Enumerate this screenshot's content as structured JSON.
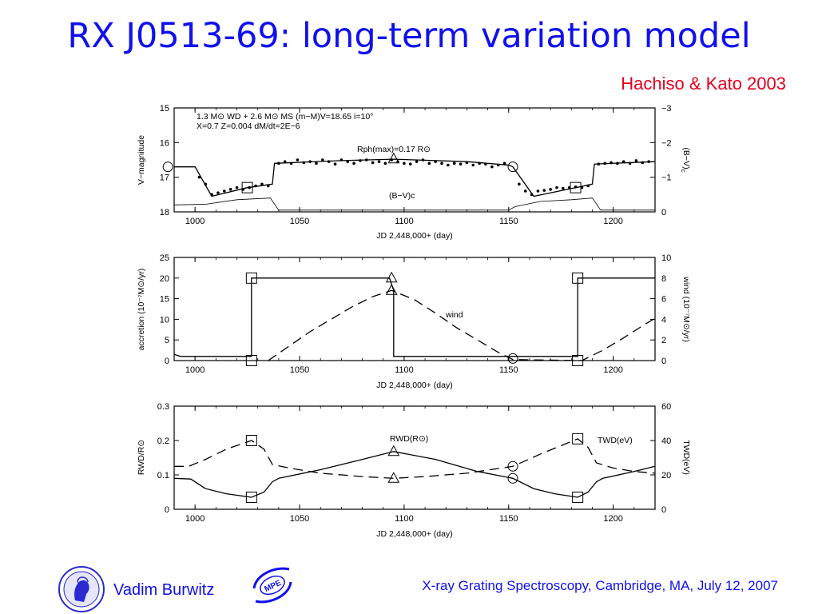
{
  "slide": {
    "title": "RX J0513-69: long-term variation model",
    "citation": "Hachiso & Kato 2003",
    "footer_author": "Vadim Burwitz",
    "footer_event": "X-ray Grating Spectroscopy, Cambridge, MA, July 12, 2007",
    "logos": [
      "max-planck-seal",
      "mpe-logo"
    ]
  },
  "colors": {
    "title": "#1010ee",
    "citation": "#e4001c",
    "footer": "#1010ee",
    "plot": "#000000"
  },
  "chart_data": [
    {
      "type": "line",
      "xlabel": "JD 2,448,000+ (day)",
      "ylabel": "V−magnitude",
      "ylabel_right": "(B−V)",
      "ylabel_right_sub": "c",
      "xlim": [
        990,
        1220
      ],
      "ylim": [
        18,
        15
      ],
      "ylim_right": [
        0,
        -3
      ],
      "xticks": [
        1000,
        1050,
        1100,
        1150,
        1200
      ],
      "yticks": [
        15,
        16,
        17,
        18
      ],
      "yticks_right": [
        -3,
        -2,
        -1,
        0
      ],
      "annotations": {
        "params_line1": "1.3 M⊙ WD + 2.6 M⊙ MS  (m−M)V=18.65  i=10°",
        "params_line2": "X=0.7  Z=0.004  dM/dt=2E−6",
        "rph_label": "Rph(max)=0.17 R⊙",
        "bv_label": "(B−V)c"
      },
      "series": [
        {
          "style": "solid",
          "x": [
            990,
            1000,
            1008,
            1025,
            1037,
            1038,
            1070,
            1095,
            1130,
            1150,
            1152,
            1162,
            1182,
            1190,
            1191,
            1220
          ],
          "y": [
            16.7,
            16.7,
            17.55,
            17.3,
            17.2,
            16.6,
            16.52,
            16.48,
            16.55,
            16.65,
            16.7,
            17.55,
            17.3,
            17.2,
            16.62,
            16.55
          ]
        },
        {
          "name": "(B−V)c",
          "style": "solid-thin",
          "x": [
            990,
            1005,
            1020,
            1036,
            1040,
            1150,
            1153,
            1165,
            1180,
            1190,
            1194,
            1220
          ],
          "y_right": [
            -0.2,
            -0.22,
            -0.35,
            -0.4,
            -0.05,
            -0.05,
            -0.15,
            -0.3,
            -0.35,
            -0.4,
            -0.05,
            -0.05
          ]
        },
        {
          "style": "dots",
          "x": [
            1002,
            1005,
            1008,
            1011,
            1014,
            1017,
            1020,
            1023,
            1026,
            1029,
            1032,
            1035,
            1040,
            1043,
            1046,
            1049,
            1052,
            1055,
            1058,
            1061,
            1064,
            1067,
            1070,
            1073,
            1076,
            1079,
            1082,
            1085,
            1088,
            1091,
            1094,
            1097,
            1100,
            1103,
            1106,
            1109,
            1112,
            1115,
            1118,
            1121,
            1124,
            1127,
            1130,
            1133,
            1136,
            1139,
            1142,
            1145,
            1148,
            1155,
            1158,
            1161,
            1164,
            1167,
            1170,
            1173,
            1176,
            1179,
            1182,
            1185,
            1188,
            1193,
            1196,
            1199,
            1202,
            1205,
            1208,
            1211,
            1214,
            1217
          ],
          "y": [
            17.0,
            17.2,
            17.5,
            17.45,
            17.4,
            17.35,
            17.3,
            17.35,
            17.3,
            17.25,
            17.2,
            17.25,
            16.6,
            16.55,
            16.6,
            16.5,
            16.58,
            16.55,
            16.6,
            16.5,
            16.55,
            16.62,
            16.5,
            16.55,
            16.6,
            16.52,
            16.5,
            16.58,
            16.55,
            16.6,
            16.5,
            16.55,
            16.6,
            16.62,
            16.55,
            16.5,
            16.6,
            16.55,
            16.6,
            16.65,
            16.6,
            16.62,
            16.58,
            16.65,
            16.6,
            16.62,
            16.7,
            16.65,
            16.6,
            17.2,
            17.4,
            17.5,
            17.4,
            17.38,
            17.35,
            17.3,
            17.32,
            17.3,
            17.28,
            17.3,
            17.25,
            16.62,
            16.6,
            16.58,
            16.6,
            16.55,
            16.6,
            16.52,
            16.58,
            16.55
          ]
        }
      ],
      "markers": [
        {
          "shape": "circle",
          "x": 987,
          "y": 16.7
        },
        {
          "shape": "square",
          "x": 1025,
          "y": 17.3
        },
        {
          "shape": "triangle",
          "x": 1095,
          "y": 16.47
        },
        {
          "shape": "circle",
          "x": 1152,
          "y": 16.7
        },
        {
          "shape": "square",
          "x": 1182,
          "y": 17.3
        }
      ]
    },
    {
      "type": "line",
      "xlabel": "JD 2,448,000+ (day)",
      "ylabel": "accretion (10⁻⁷M⊙/yr)",
      "ylabel_right": "wind (10⁻⁷M⊙/yr)",
      "xlim": [
        990,
        1220
      ],
      "ylim": [
        0,
        25
      ],
      "ylim_right": [
        0,
        10
      ],
      "xticks": [
        1000,
        1050,
        1100,
        1150,
        1200
      ],
      "yticks": [
        0,
        5,
        10,
        15,
        20,
        25
      ],
      "yticks_right": [
        0,
        2,
        4,
        6,
        8,
        10
      ],
      "annotations": {
        "wind_label": "wind"
      },
      "series": [
        {
          "name": "accretion",
          "style": "solid",
          "x": [
            990,
            993,
            1027,
            1027,
            1093,
            1095,
            1095,
            1183,
            1183,
            1220
          ],
          "y": [
            1.5,
            1,
            1,
            20,
            20,
            17,
            1,
            1,
            20,
            20
          ]
        },
        {
          "name": "wind",
          "style": "dashed",
          "x": [
            1035,
            1045,
            1055,
            1065,
            1075,
            1085,
            1094,
            1105,
            1115,
            1125,
            1135,
            1145,
            1152,
            1185,
            1195,
            1205,
            1215,
            1220
          ],
          "y_right": [
            0,
            1.4,
            2.8,
            4.0,
            5.2,
            6.2,
            6.8,
            5.9,
            4.6,
            3.2,
            2.0,
            0.8,
            0.1,
            0,
            1.0,
            2.2,
            3.5,
            4.1
          ]
        }
      ],
      "markers": [
        {
          "shape": "square",
          "x": 1027,
          "y": 20
        },
        {
          "shape": "square",
          "x": 1027,
          "y": 0
        },
        {
          "shape": "triangle",
          "x": 1094,
          "y": 20
        },
        {
          "shape": "triangle",
          "x": 1094,
          "y": 17
        },
        {
          "shape": "circle",
          "x": 1152,
          "y": 0.5
        },
        {
          "shape": "square",
          "x": 1183,
          "y": 20
        },
        {
          "shape": "square",
          "x": 1183,
          "y": 0
        }
      ]
    },
    {
      "type": "line",
      "xlabel": "JD 2,448,000+ (day)",
      "ylabel": "RWD/R⊙",
      "ylabel_right": "TWD(eV)",
      "xlim": [
        990,
        1220
      ],
      "ylim": [
        0,
        0.3
      ],
      "ylim_right": [
        0,
        60
      ],
      "xticks": [
        1000,
        1050,
        1100,
        1150,
        1200
      ],
      "yticks": [
        0,
        0.1,
        0.2,
        0.3
      ],
      "yticks_right": [
        0,
        20,
        40,
        60
      ],
      "annotations": {
        "rwd_label": "RWD(R⊙)",
        "twd_label": "TWD(eV)"
      },
      "series": [
        {
          "name": "RWD(R⊙)",
          "style": "solid",
          "x": [
            990,
            998,
            1005,
            1015,
            1027,
            1033,
            1037,
            1040,
            1060,
            1080,
            1095,
            1115,
            1135,
            1152,
            1162,
            1172,
            1183,
            1188,
            1192,
            1195,
            1210,
            1220
          ],
          "y": [
            0.09,
            0.088,
            0.06,
            0.045,
            0.035,
            0.05,
            0.08,
            0.09,
            0.115,
            0.145,
            0.168,
            0.145,
            0.11,
            0.09,
            0.06,
            0.045,
            0.035,
            0.05,
            0.08,
            0.09,
            0.11,
            0.125
          ]
        },
        {
          "name": "TWD(eV)",
          "style": "dashed",
          "x": [
            990,
            997,
            1005,
            1015,
            1027,
            1033,
            1037,
            1045,
            1060,
            1080,
            1095,
            1110,
            1130,
            1152,
            1165,
            1175,
            1183,
            1188,
            1192,
            1200,
            1210,
            1220
          ],
          "y_right": [
            25,
            25,
            29,
            35,
            40,
            35,
            26,
            24,
            21,
            19,
            18,
            19,
            21,
            25,
            32,
            37,
            41,
            36,
            27,
            24,
            22,
            21
          ]
        }
      ],
      "markers": [
        {
          "shape": "square",
          "x": 1027,
          "y_right": 40
        },
        {
          "shape": "square",
          "x": 1027,
          "y": 0.035
        },
        {
          "shape": "triangle",
          "x": 1095,
          "y": 0.168
        },
        {
          "shape": "triangle",
          "x": 1095,
          "y_right": 18
        },
        {
          "shape": "circle",
          "x": 1152,
          "y_right": 25
        },
        {
          "shape": "circle",
          "x": 1152,
          "y": 0.09
        },
        {
          "shape": "square",
          "x": 1183,
          "y_right": 41
        },
        {
          "shape": "square",
          "x": 1183,
          "y": 0.035
        }
      ]
    }
  ]
}
